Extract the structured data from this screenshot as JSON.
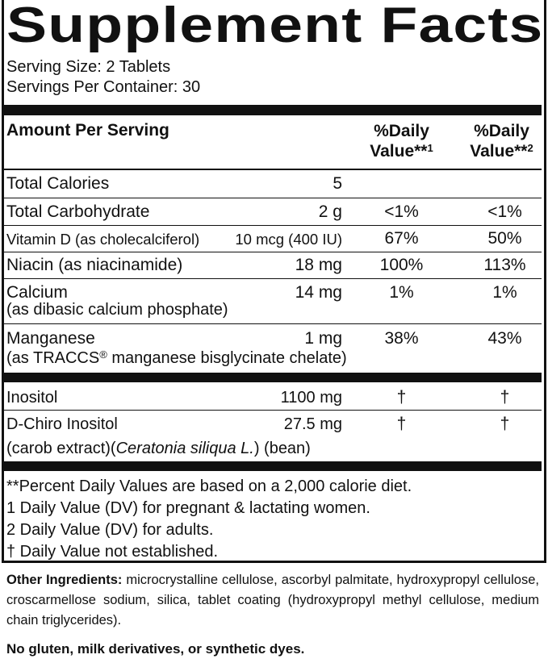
{
  "title": "Supplement Facts",
  "serving_size": "Serving Size: 2 Tablets",
  "servings_per_container": "Servings Per Container: 30",
  "header": {
    "amount": "Amount Per Serving",
    "dv1": {
      "line1": "%Daily",
      "line2": "Value**",
      "sup": "1"
    },
    "dv2": {
      "line1": "%Daily",
      "line2": "Value**",
      "sup": "2"
    }
  },
  "rows": [
    {
      "name": "Total Calories",
      "amount": "5"
    },
    {
      "name": "Total Carbohydrate",
      "amount": "2 g",
      "dv1": "<1%",
      "dv2": "<1%"
    },
    {
      "name": "Vitamin D (as cholecalciferol)",
      "amount": "10 mcg (400 IU)",
      "dv1": "67%",
      "dv2": "50%"
    },
    {
      "name": "Niacin (as niacinamide)",
      "amount": "18 mg",
      "dv1": "100%",
      "dv2": "113%"
    },
    {
      "name": "Calcium",
      "note": "(as dibasic calcium phosphate)",
      "amount": "14 mg",
      "dv1": "1%",
      "dv2": "1%"
    },
    {
      "name": "Manganese",
      "note": [
        "(as TRACCS",
        "®",
        " manganese bisglycinate chelate)"
      ],
      "amount": "1 mg",
      "dv1": "38%",
      "dv2": "43%"
    },
    {
      "name": "Inositol",
      "amount": "1100 mg",
      "dv1": "†",
      "dv2": "†"
    },
    {
      "name": "D-Chiro Inositol",
      "note": [
        "(carob extract)(",
        "Ceratonia siliqua L.",
        ") (bean)"
      ],
      "amount": "27.5 mg",
      "dv1": "†",
      "dv2": "†"
    }
  ],
  "footnotes": [
    "**Percent Daily Values are based on a 2,000 calorie diet.",
    "1 Daily Value (DV) for pregnant & lactating women.",
    "2 Daily Value (DV) for adults.",
    "† Daily Value not established."
  ],
  "other_ingredients": {
    "label": "Other Ingredients:",
    "text": "microcrystalline cellulose, ascorbyl palmitate, hydroxypropyl cellulose, croscarmellose sodium, silica, tablet coating (hydroxypropyl methyl cellulose, medium chain triglycerides)."
  },
  "free_from": "No gluten, milk derivatives, or synthetic dyes."
}
